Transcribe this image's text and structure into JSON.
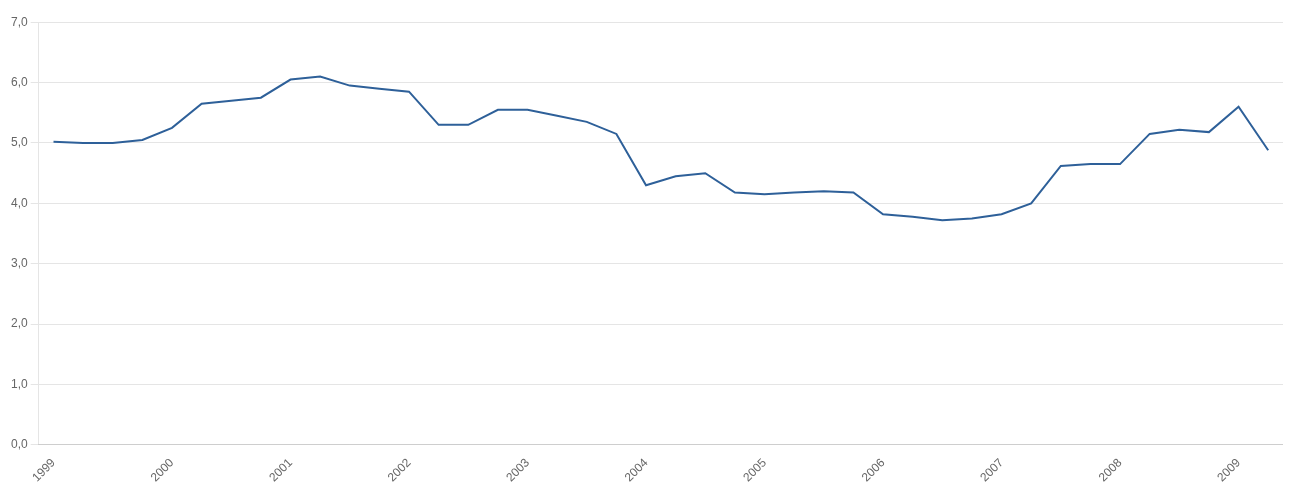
{
  "chart_data": {
    "type": "line",
    "categories": [
      "1999",
      null,
      null,
      null,
      "2000",
      null,
      null,
      null,
      "2001",
      null,
      null,
      null,
      "2002",
      null,
      null,
      null,
      "2003",
      null,
      null,
      null,
      "2004",
      null,
      null,
      null,
      "2005",
      null,
      null,
      null,
      "2006",
      null,
      null,
      null,
      "2007",
      null,
      null,
      null,
      "2008",
      null,
      null,
      null,
      "2009",
      null
    ],
    "values": [
      5.02,
      5.0,
      5.0,
      5.05,
      5.25,
      5.65,
      5.7,
      5.75,
      6.05,
      6.1,
      5.95,
      5.9,
      5.85,
      5.3,
      5.3,
      5.55,
      5.55,
      5.45,
      5.35,
      5.15,
      4.3,
      4.45,
      4.5,
      4.18,
      4.15,
      4.18,
      4.2,
      4.18,
      3.82,
      3.78,
      3.72,
      3.75,
      3.82,
      4.0,
      4.62,
      4.65,
      4.65,
      5.15,
      5.22,
      5.18,
      5.6,
      4.88
    ],
    "color": "#2E6099",
    "ylim": [
      0.0,
      7.0
    ],
    "yticks": [
      {
        "value": 0,
        "label": "0,0"
      },
      {
        "value": 1,
        "label": "1,0"
      },
      {
        "value": 2,
        "label": "2,0"
      },
      {
        "value": 3,
        "label": "3,0"
      },
      {
        "value": 4,
        "label": "4,0"
      },
      {
        "value": 5,
        "label": "5,0"
      },
      {
        "value": 6,
        "label": "6,0"
      },
      {
        "value": 7,
        "label": "7,0"
      }
    ],
    "grid": true
  }
}
